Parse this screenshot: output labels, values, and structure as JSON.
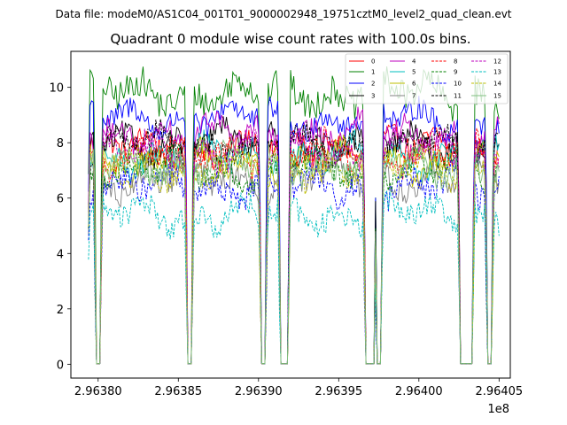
{
  "chart_data": {
    "type": "line",
    "suptitle": "Data file: modeM0/AS1C04_001T01_9000002948_19751cztM0_level2_quad_clean.evt",
    "title": "Quadrant 0 module wise count rates with 100.0s bins.",
    "xlabel": "",
    "ylabel": "",
    "x_offset_label": "1e8",
    "xlim": [
      2.963783,
      2.964057
    ],
    "ylim": [
      -0.5,
      11.3
    ],
    "xticks": [
      2.9638,
      2.96385,
      2.9639,
      2.96395,
      2.964,
      2.96405
    ],
    "xtick_labels": [
      "2.96380",
      "2.96385",
      "2.96390",
      "2.96395",
      "2.96400",
      "2.96405"
    ],
    "yticks": [
      0,
      2,
      4,
      6,
      8,
      10
    ],
    "ytick_labels": [
      "0",
      "2",
      "4",
      "6",
      "8",
      "10"
    ],
    "x_start": 2.963794,
    "x_end": 2.96405,
    "x_step": 1e-06,
    "gaps": [
      [
        2.963799,
        2.963801
      ],
      [
        2.963856,
        2.963858
      ],
      [
        2.963902,
        2.963904
      ],
      [
        2.963914,
        2.963918
      ],
      [
        2.963967,
        2.963972
      ],
      [
        2.963974,
        2.963976
      ],
      [
        2.964026,
        2.964033
      ],
      [
        2.964043,
        2.964045
      ]
    ],
    "series": [
      {
        "name": "0",
        "color": "#ff0000",
        "style": "solid",
        "level": 7.8
      },
      {
        "name": "1",
        "color": "#008000",
        "style": "solid",
        "level": 9.8
      },
      {
        "name": "2",
        "color": "#0000ff",
        "style": "solid",
        "level": 8.9
      },
      {
        "name": "3",
        "color": "#000000",
        "style": "solid",
        "level": 8.0
      },
      {
        "name": "4",
        "color": "#bf00bf",
        "style": "solid",
        "level": 8.3
      },
      {
        "name": "5",
        "color": "#00bfbf",
        "style": "solid",
        "level": 7.5
      },
      {
        "name": "6",
        "color": "#bfbf00",
        "style": "solid",
        "level": 7.3
      },
      {
        "name": "7",
        "color": "#808080",
        "style": "solid",
        "level": 6.7
      },
      {
        "name": "8",
        "color": "#ff0000",
        "style": "dashed",
        "level": 7.6
      },
      {
        "name": "9",
        "color": "#008000",
        "style": "dashed",
        "level": 7.0
      },
      {
        "name": "10",
        "color": "#0000ff",
        "style": "dashed",
        "level": 6.4
      },
      {
        "name": "11",
        "color": "#000000",
        "style": "dashed",
        "level": 7.9
      },
      {
        "name": "12",
        "color": "#bf00bf",
        "style": "dashed",
        "level": 7.7
      },
      {
        "name": "13",
        "color": "#00bfbf",
        "style": "dashed",
        "level": 5.4
      },
      {
        "name": "14",
        "color": "#bfbf00",
        "style": "dashed",
        "level": 7.1
      },
      {
        "name": "15",
        "color": "#80bf80",
        "style": "solid",
        "level": 7.2
      }
    ]
  }
}
